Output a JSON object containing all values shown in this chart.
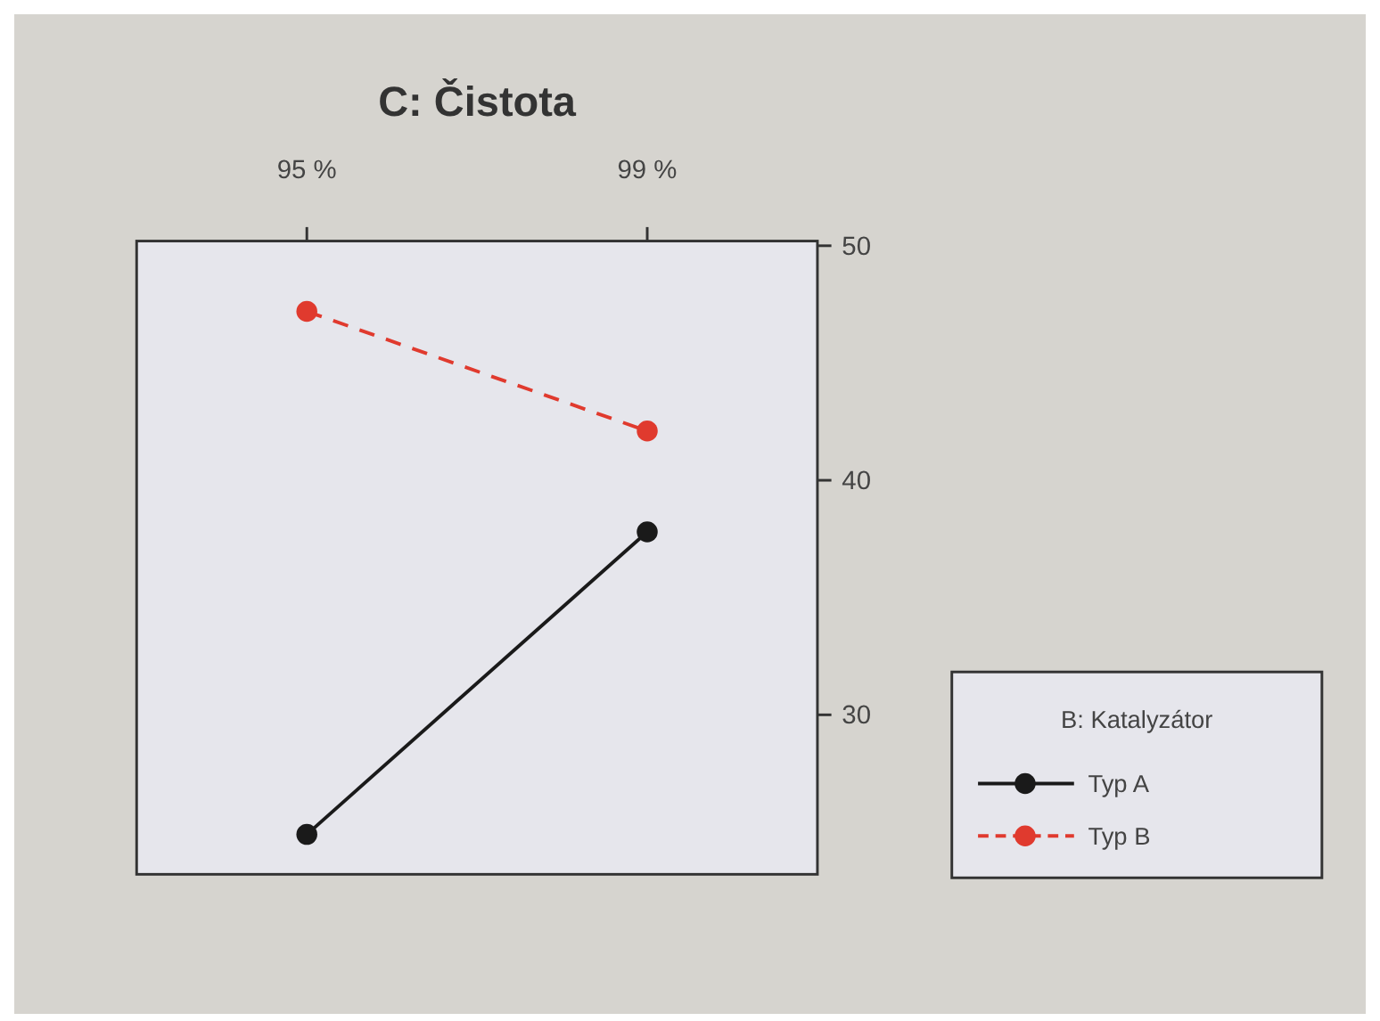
{
  "chart_data": {
    "type": "line",
    "title": "C: Čistota",
    "categories": [
      "95 %",
      "99 %"
    ],
    "legend_title": "B: Katalyzátor",
    "legend": "bottom right",
    "marker": "circle",
    "ylim": [
      23.2,
      50.2
    ],
    "yticks": [
      30,
      40,
      50
    ],
    "series": [
      {
        "name": "Typ A",
        "color": "#1a1a1a",
        "values": [
          24.9,
          37.8
        ],
        "line_style": "solid"
      },
      {
        "name": "Typ B",
        "color": "#e03a2e",
        "values": [
          47.2,
          42.1
        ],
        "line_style": "dashed"
      }
    ]
  }
}
